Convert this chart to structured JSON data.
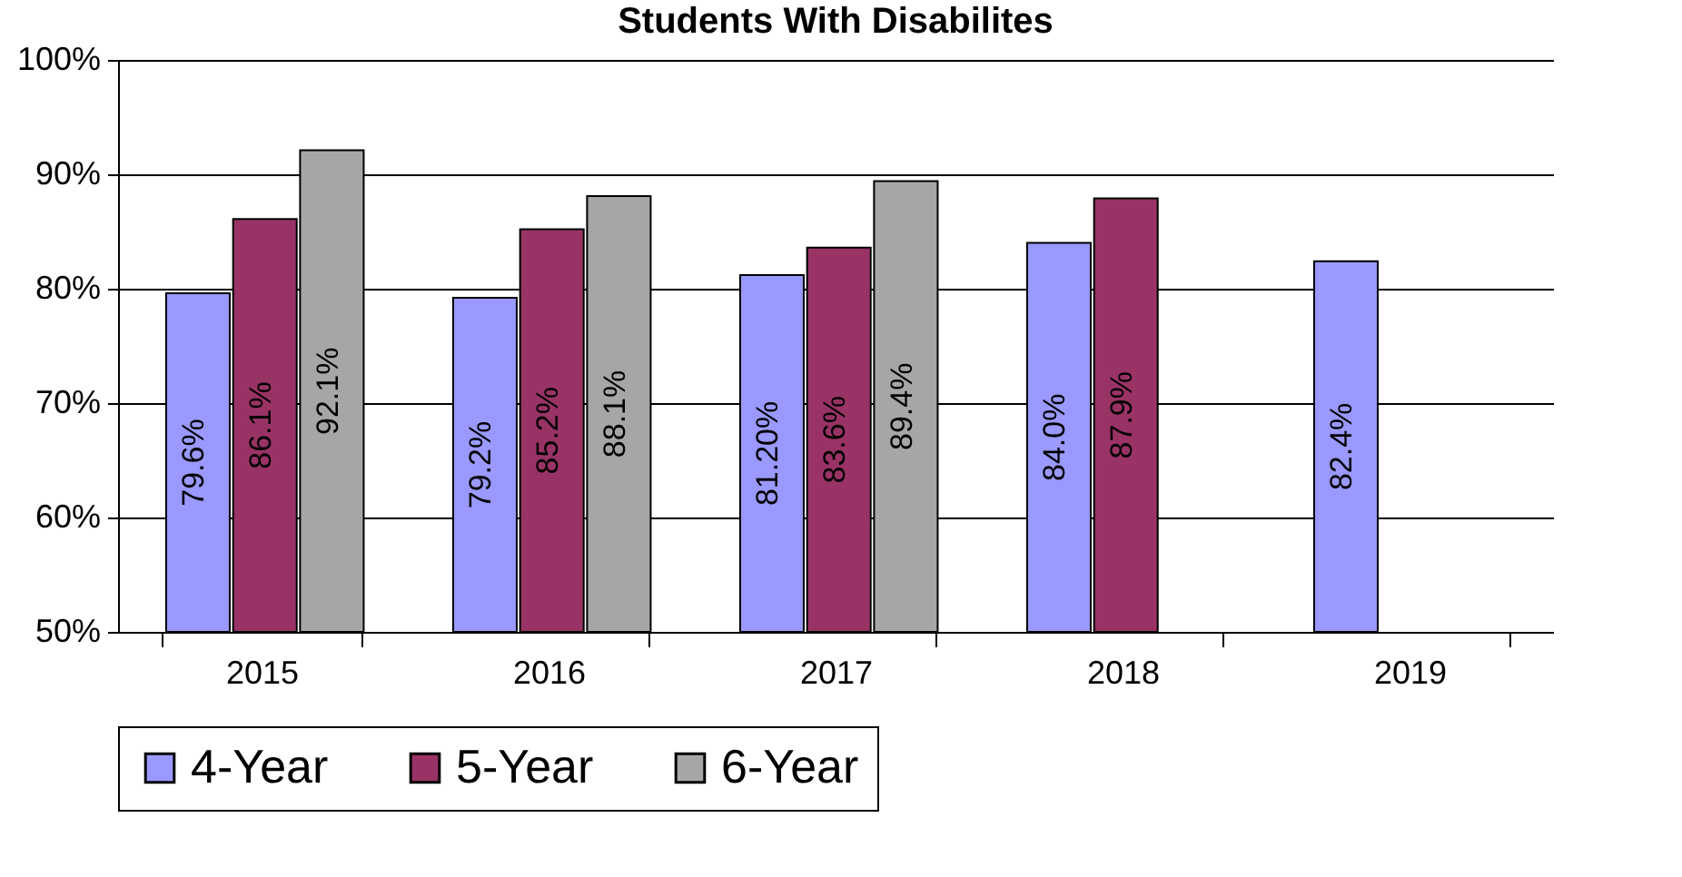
{
  "chart_data": {
    "type": "bar",
    "title": "Students With Disabilites",
    "categories": [
      "2015",
      "2016",
      "2017",
      "2018",
      "2019"
    ],
    "series": [
      {
        "name": "4-Year",
        "color": "#9999ff",
        "values": [
          79.6,
          79.2,
          81.2,
          84.0,
          82.4
        ],
        "value_labels": [
          "79.6%",
          "79.2%",
          "81.20%",
          "84.0%",
          "82.4%"
        ]
      },
      {
        "name": "5-Year",
        "color": "#993366",
        "values": [
          86.1,
          85.2,
          83.6,
          87.9,
          null
        ],
        "value_labels": [
          "86.1%",
          "85.2%",
          "83.6%",
          "87.9%",
          null
        ]
      },
      {
        "name": "6-Year",
        "color": "#a6a6a6",
        "values": [
          92.1,
          88.1,
          89.4,
          null,
          null
        ],
        "value_labels": [
          "92.1%",
          "88.1%",
          "89.4%",
          null,
          null
        ]
      }
    ],
    "ylim": [
      50,
      100
    ],
    "yticks": [
      {
        "value": 50,
        "label": "50%"
      },
      {
        "value": 60,
        "label": "60%"
      },
      {
        "value": 70,
        "label": "70%"
      },
      {
        "value": 80,
        "label": "80%"
      },
      {
        "value": 90,
        "label": "90%"
      },
      {
        "value": 100,
        "label": "100%"
      }
    ],
    "grid": "y",
    "legend": "bottom"
  }
}
